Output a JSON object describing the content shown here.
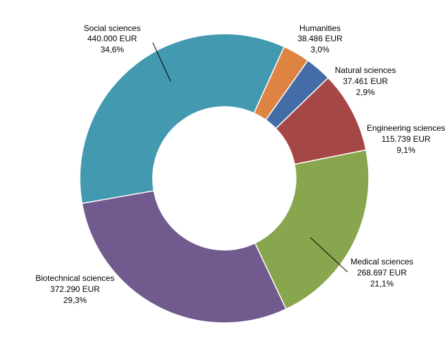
{
  "chart_data": {
    "type": "pie",
    "donut": true,
    "title": "",
    "slices": [
      {
        "name": "Social sciences",
        "value": 440000,
        "value_label": "440.000 EUR",
        "percent_label": "34,6%",
        "color": "#4299b0"
      },
      {
        "name": "Humanities",
        "value": 38486,
        "value_label": "38.486 EUR",
        "percent_label": "3,0%",
        "color": "#de8442"
      },
      {
        "name": "Natural sciences",
        "value": 37461,
        "value_label": "37.461 EUR",
        "percent_label": "2,9%",
        "color": "#446da8"
      },
      {
        "name": "Engineering sciences",
        "value": 115739,
        "value_label": "115.739 EUR",
        "percent_label": "9,1%",
        "color": "#a64747"
      },
      {
        "name": "Medical sciences",
        "value": 268697,
        "value_label": "268.697 EUR",
        "percent_label": "21,1%",
        "color": "#88a64e"
      },
      {
        "name": "Biotechnical sciences",
        "value": 372290,
        "value_label": "372.290 EUR",
        "percent_label": "29,3%",
        "color": "#715a8d"
      }
    ]
  }
}
